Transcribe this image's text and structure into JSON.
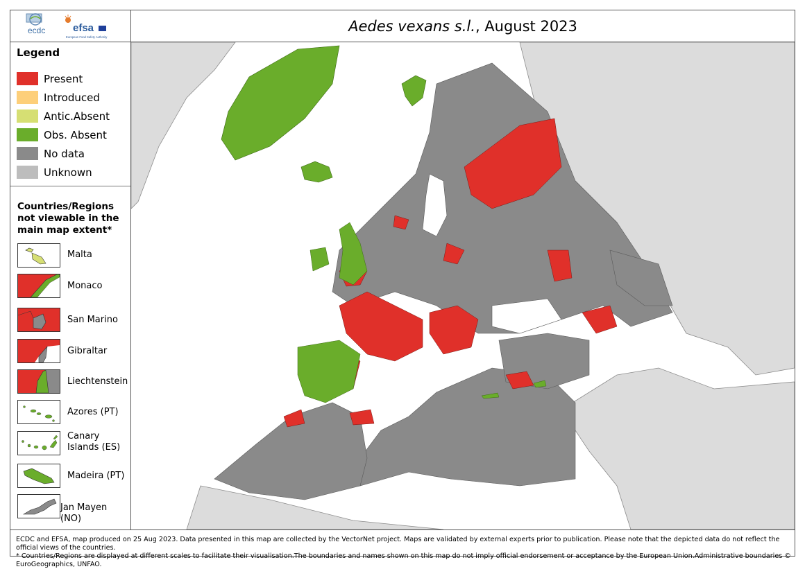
{
  "header": {
    "logos": {
      "ecdc": "ecdc",
      "efsa": "efsa",
      "efsa_subtitle": "European Food Safety Authority"
    },
    "title_species": "Aedes vexans s.l.",
    "title_date": ", August 2023"
  },
  "legend": {
    "title": "Legend",
    "items": [
      {
        "label": "Present",
        "color": "#e0302a"
      },
      {
        "label": "Introduced",
        "color": "#fdcf7a"
      },
      {
        "label": "Antic.Absent",
        "color": "#d6df73"
      },
      {
        "label": "Obs. Absent",
        "color": "#6aad2b"
      },
      {
        "label": "No data",
        "color": "#8a8a8a"
      },
      {
        "label": "Unknown",
        "color": "#bdbdbd"
      }
    ]
  },
  "insets": {
    "title": "Countries/Regions not viewable in the main map extent*",
    "items": [
      {
        "label": "Malta"
      },
      {
        "label": "Monaco"
      },
      {
        "label": "San Marino"
      },
      {
        "label": "Gibraltar"
      },
      {
        "label": "Liechtenstein"
      },
      {
        "label": "Azores (PT)"
      },
      {
        "label": "Canary Islands (ES)"
      },
      {
        "label": "Madeira (PT)"
      },
      {
        "label": "Jan Mayen (NO)"
      }
    ]
  },
  "footer": {
    "line1": "ECDC and EFSA, map produced on 25 Aug 2023. Data presented in this map are collected by the VectorNet project. Maps are validated by external experts prior to publication. Please note that the depicted data do not reflect the official views of the countries.",
    "line2": "* Countries/Regions are displayed at different scales to facilitate their visualisation.The boundaries and names shown on this map do not imply official endorsement or acceptance by the European Union.Administrative boundaries © EuroGeographics, UNFAO."
  }
}
